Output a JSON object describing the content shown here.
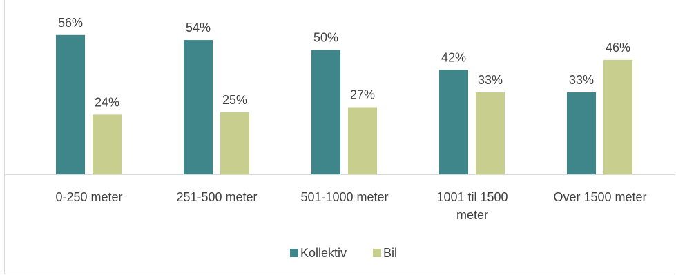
{
  "chart_data": {
    "type": "bar",
    "categories": [
      [
        "0-250 meter"
      ],
      [
        "251-500 meter"
      ],
      [
        "501-1000 meter"
      ],
      [
        "1001 til 1500",
        "meter"
      ],
      [
        "Over 1500 meter"
      ]
    ],
    "series": [
      {
        "name": "Kollektiv",
        "values": [
          56,
          54,
          50,
          42,
          33
        ],
        "labels": [
          "56%",
          "54%",
          "50%",
          "42%",
          "33%"
        ],
        "color": "#3e868a"
      },
      {
        "name": "Bil",
        "values": [
          24,
          25,
          27,
          33,
          46
        ],
        "labels": [
          "24%",
          "25%",
          "27%",
          "33%",
          "46%"
        ],
        "color": "#c8cf8e"
      }
    ],
    "legend_position": "bottom",
    "grid": false
  }
}
